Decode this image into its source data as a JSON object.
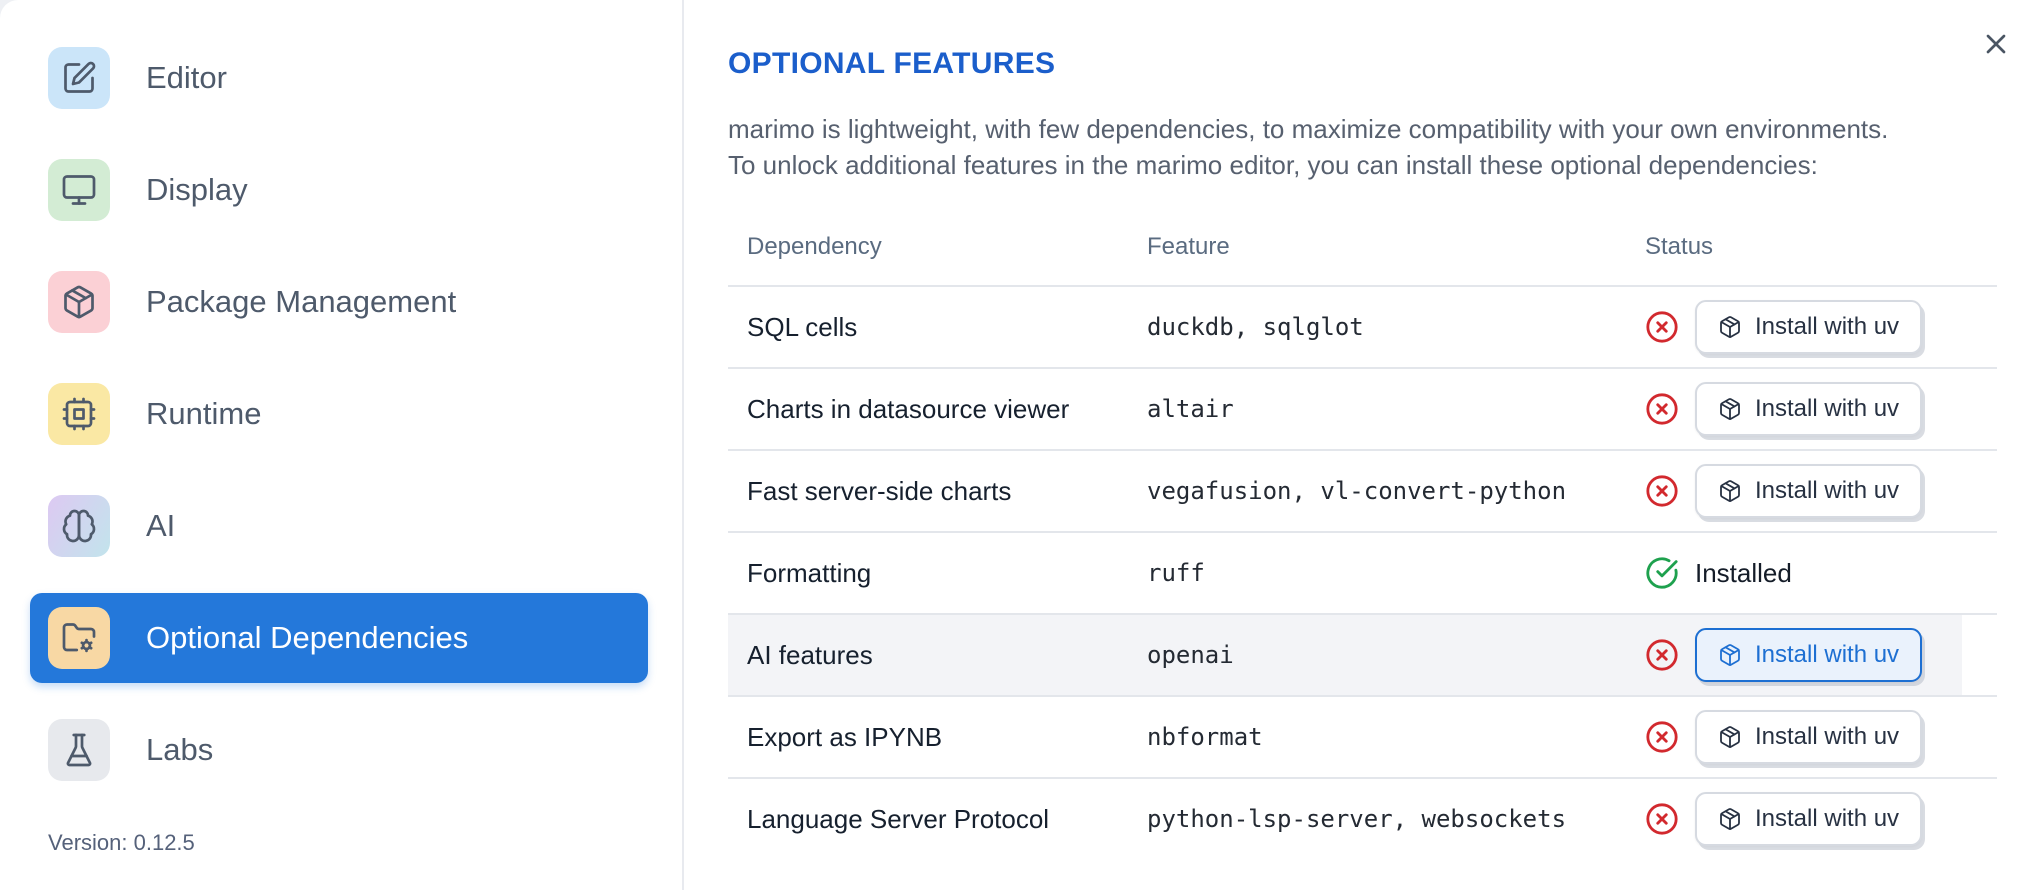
{
  "colors": {
    "accent": "#2478da",
    "title_blue": "#1b5ecb",
    "button_primary_blue": "#1d6fd2",
    "status_red": "#d2292e",
    "status_green": "#1ea14e"
  },
  "sidebar": {
    "items": [
      {
        "label": "Editor",
        "icon": "edit-icon",
        "icon_bg": "#cbe5f9",
        "selected": false
      },
      {
        "label": "Display",
        "icon": "monitor-icon",
        "icon_bg": "#d3ecd4",
        "selected": false
      },
      {
        "label": "Package Management",
        "icon": "package-icon",
        "icon_bg": "#fbd0d5",
        "selected": false
      },
      {
        "label": "Runtime",
        "icon": "cpu-icon",
        "icon_bg": "#fae8a4",
        "selected": false
      },
      {
        "label": "AI",
        "icon": "brain-icon",
        "icon_bg": "linear-gradient(120deg,#ddc9f2,#c2e4ec)",
        "selected": false
      },
      {
        "label": "Optional Dependencies",
        "icon": "folder-cog-icon",
        "icon_bg": "#f8d8a4",
        "selected": true
      },
      {
        "label": "Labs",
        "icon": "flask-icon",
        "icon_bg": "#e7e9ed",
        "selected": false
      }
    ],
    "version_label": "Version: 0.12.5"
  },
  "panel": {
    "title": "OPTIONAL FEATURES",
    "description_lines": [
      "marimo is lightweight, with few dependencies, to maximize compatibility with your own environments.",
      "To unlock additional features in the marimo editor, you can install these optional dependencies:"
    ],
    "table": {
      "headers": [
        "Dependency",
        "Feature",
        "Status"
      ],
      "installed_label": "Installed",
      "install_button_label": "Install with uv",
      "rows": [
        {
          "dependency": "SQL cells",
          "feature": "duckdb, sqlglot",
          "installed": false,
          "highlighted": false
        },
        {
          "dependency": "Charts in datasource viewer",
          "feature": "altair",
          "installed": false,
          "highlighted": false
        },
        {
          "dependency": "Fast server-side charts",
          "feature": "vegafusion, vl-convert-python",
          "installed": false,
          "highlighted": false
        },
        {
          "dependency": "Formatting",
          "feature": "ruff",
          "installed": true,
          "highlighted": false
        },
        {
          "dependency": "AI features",
          "feature": "openai",
          "installed": false,
          "highlighted": true
        },
        {
          "dependency": "Export as IPYNB",
          "feature": "nbformat",
          "installed": false,
          "highlighted": false
        },
        {
          "dependency": "Language Server Protocol",
          "feature": "python-lsp-server, websockets",
          "installed": false,
          "highlighted": false
        }
      ]
    }
  }
}
